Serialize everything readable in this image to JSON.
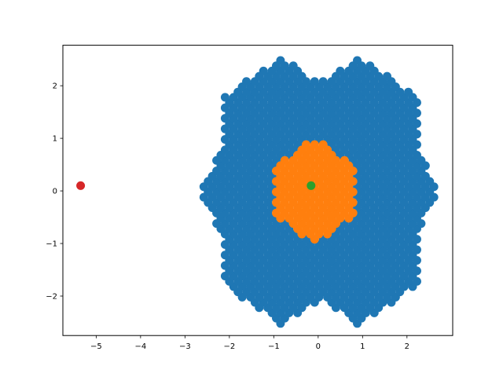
{
  "chart_data": {
    "type": "scatter",
    "title": "",
    "xlabel": "",
    "ylabel": "",
    "xlim": [
      -5.75,
      3.03
    ],
    "ylim": [
      -2.75,
      2.77
    ],
    "grid": false,
    "legend": "none",
    "x_ticks": [
      {
        "value": -5,
        "label": "−5"
      },
      {
        "value": -4,
        "label": "−4"
      },
      {
        "value": -3,
        "label": "−3"
      },
      {
        "value": -2,
        "label": "−2"
      },
      {
        "value": -1,
        "label": "−1"
      },
      {
        "value": 0,
        "label": "0"
      },
      {
        "value": 1,
        "label": "1"
      },
      {
        "value": 2,
        "label": "2"
      }
    ],
    "y_ticks": [
      {
        "value": -2,
        "label": "−2"
      },
      {
        "value": -1,
        "label": "−1"
      },
      {
        "value": 0,
        "label": "0"
      },
      {
        "value": 1,
        "label": "1"
      },
      {
        "value": 2,
        "label": "2"
      }
    ],
    "series": [
      {
        "color": "#1f77b4",
        "description": "hexagonal lattice points in union of two hexagons (centered at x=-0.155 and x=0.845, radius ~1.5, shifted in y by ±1) and horizontal hexagon",
        "generator": {
          "lattice_step": 0.16,
          "row_step": 0.1,
          "shapes": [
            {
              "cx": -0.155,
              "cy": 1.0,
              "r": 1.55
            },
            {
              "cx": 0.845,
              "cy": 1.0,
              "r": 1.55
            },
            {
              "cx": -0.155,
              "cy": -1.0,
              "r": 1.55
            },
            {
              "cx": 0.845,
              "cy": -1.0,
              "r": 1.55
            },
            {
              "cx": -0.88,
              "cy": 0.0,
              "r": 1.75
            },
            {
              "cx": 1.52,
              "cy": 0.0,
              "r": 1.2
            }
          ]
        }
      },
      {
        "color": "#ff7f0e",
        "description": "inner hexagonal cluster",
        "generator": {
          "cx": 0.0,
          "cy": 0.0,
          "r": 1.0
        }
      },
      {
        "color": "#2ca02c",
        "points": [
          [
            -0.16,
            0.1
          ]
        ]
      },
      {
        "color": "#d62728",
        "points": [
          [
            -5.35,
            0.1
          ]
        ]
      }
    ]
  }
}
